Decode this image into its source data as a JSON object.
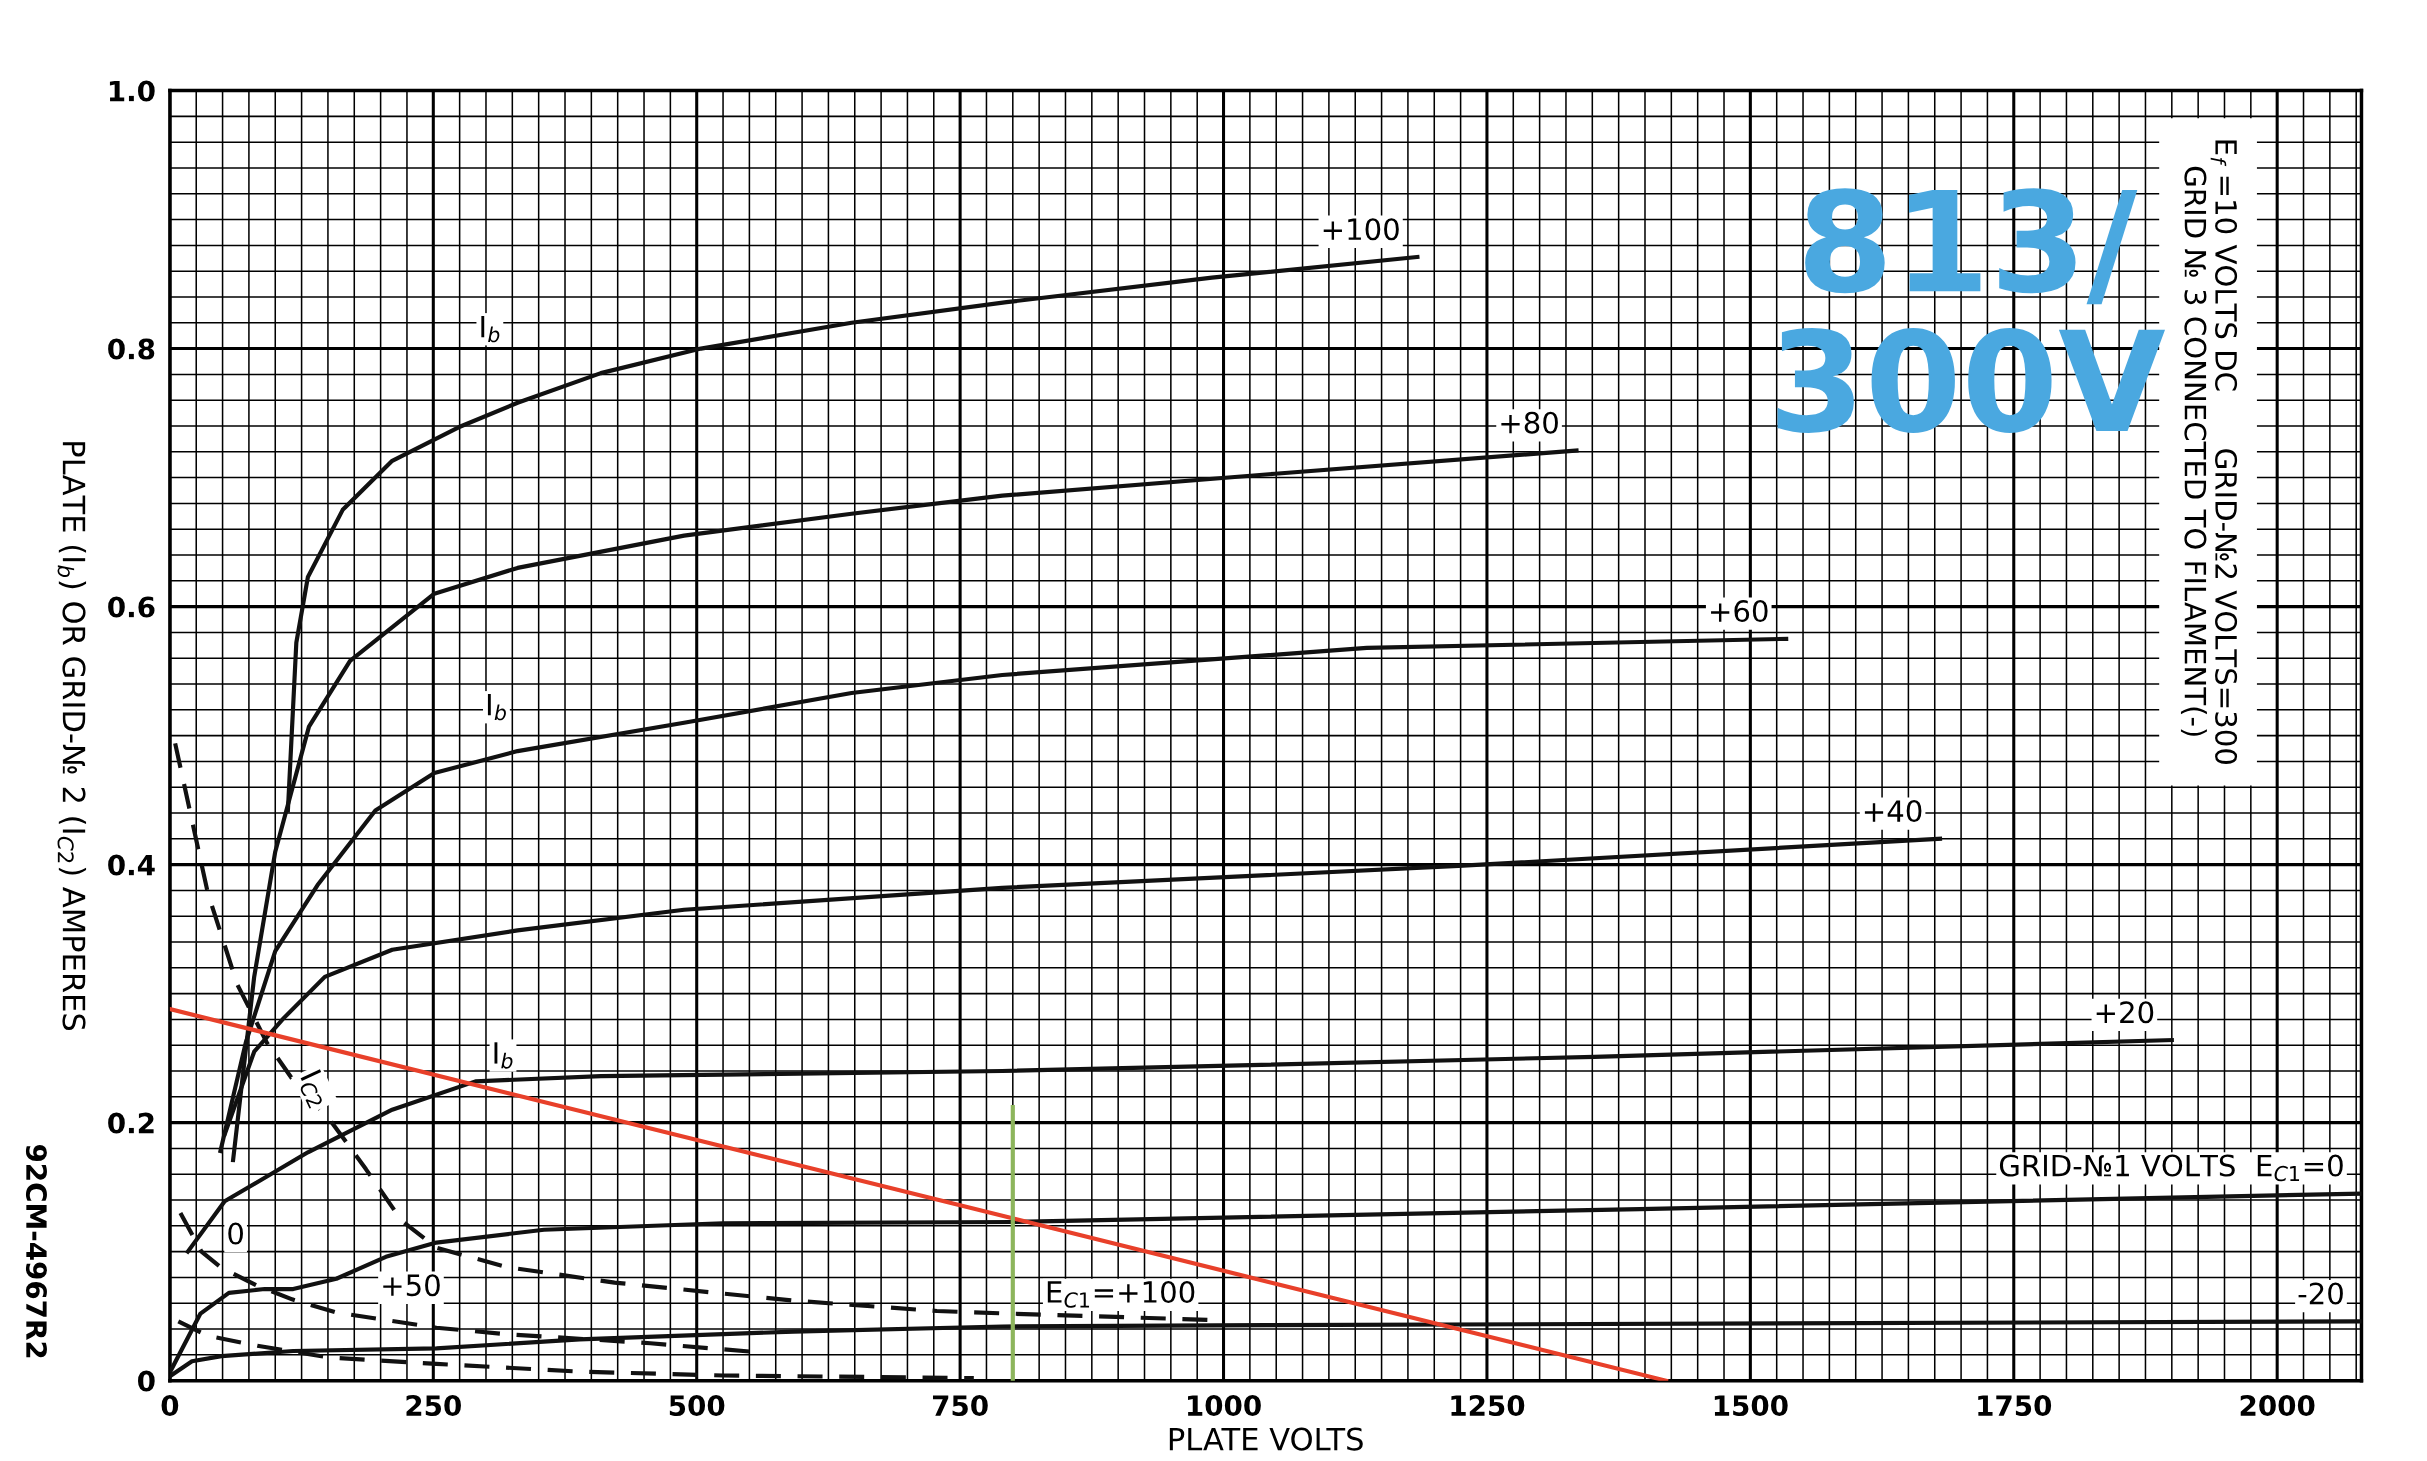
{
  "chart_data": {
    "type": "line",
    "xlabel": "PLATE VOLTS",
    "ylabel": "PLATE (I$_{b}$) OR GRID-№ 2 (I$_{C2}$) AMPERES",
    "xlim": [
      0,
      2080
    ],
    "ylim": [
      0,
      1.0
    ],
    "xticks": [
      0,
      250,
      500,
      750,
      1000,
      1250,
      1500,
      1750,
      2000
    ],
    "yticks": [
      0,
      0.2,
      0.4,
      0.6,
      0.8,
      {
        "value": 1,
        "label": "1.0"
      }
    ],
    "grid": true,
    "marker": "none",
    "series": [
      {
        "name": "+100",
        "color": "#111111",
        "line_style": "solid",
        "x": [
          112,
          120,
          131,
          164,
          211,
          274,
          330,
          409,
          504,
          647,
          794,
          989,
          1184
        ],
        "values": [
          0.442,
          0.572,
          0.623,
          0.675,
          0.713,
          0.739,
          0.758,
          0.781,
          0.8,
          0.82,
          0.836,
          0.855,
          0.871
        ]
      },
      {
        "name": "+80",
        "color": "#111111",
        "line_style": "solid",
        "x": [
          60,
          80,
          100,
          132,
          171,
          251,
          330,
          488,
          647,
          790,
          1049,
          1335
        ],
        "values": [
          0.171,
          0.313,
          0.41,
          0.507,
          0.558,
          0.61,
          0.63,
          0.655,
          0.672,
          0.686,
          0.703,
          0.721
        ]
      },
      {
        "name": "+60",
        "color": "#111111",
        "line_style": "solid",
        "x": [
          48,
          72,
          100,
          140,
          195,
          251,
          330,
          488,
          647,
          790,
          1136,
          1534
        ],
        "values": [
          0.178,
          0.262,
          0.333,
          0.384,
          0.442,
          0.471,
          0.488,
          0.51,
          0.533,
          0.547,
          0.568,
          0.575
        ]
      },
      {
        "name": "+40",
        "color": "#111111",
        "line_style": "solid",
        "x": [
          52,
          80,
          108,
          147,
          211,
          330,
          488,
          790,
          1223,
          1680
        ],
        "values": [
          0.191,
          0.255,
          0.281,
          0.313,
          0.334,
          0.349,
          0.365,
          0.382,
          0.399,
          0.42
        ]
      },
      {
        "name": "+20",
        "color": "#111111",
        "line_style": "solid",
        "x": [
          17,
          52,
          131,
          211,
          290,
          409,
          790,
          1352,
          1900
        ],
        "values": [
          0.1,
          0.139,
          0.177,
          0.21,
          0.232,
          0.236,
          0.24,
          0.251,
          0.264
        ]
      },
      {
        "name": "GRID-№1 VOLTS  E$_{C1}$=0",
        "color": "#111111",
        "line_style": "solid",
        "x": [
          1,
          29,
          56,
          90,
          117,
          158,
          205,
          253,
          355,
          525,
          800,
          1395,
          2080
        ],
        "values": [
          0.008,
          0.052,
          0.068,
          0.071,
          0.071,
          0.079,
          0.096,
          0.107,
          0.117,
          0.122,
          0.123,
          0.133,
          0.145
        ]
      },
      {
        "name": "-20",
        "color": "#111111",
        "line_style": "solid",
        "x": [
          1,
          21,
          49,
          117,
          253,
          389,
          592,
          790,
          1041,
          2080
        ],
        "values": [
          0.004,
          0.015,
          0.019,
          0.023,
          0.025,
          0.032,
          0.038,
          0.042,
          0.043,
          0.046
        ]
      },
      {
        "name": "E$_{C1}$=+100",
        "color": "#111111",
        "line_style": "dashed",
        "x": [
          5,
          36,
          64,
          92,
          116,
          152,
          186,
          220,
          253,
          320,
          422,
          592,
          728,
          796,
          990
        ],
        "values": [
          0.494,
          0.378,
          0.307,
          0.262,
          0.234,
          0.202,
          0.164,
          0.124,
          0.103,
          0.088,
          0.076,
          0.062,
          0.054,
          0.052,
          0.047
        ]
      },
      {
        "color": "#111111",
        "line_style": "dashed",
        "x": [
          10,
          30,
          48,
          82,
          116,
          157,
          253,
          320,
          456,
          558
        ],
        "values": [
          0.13,
          0.1,
          0.088,
          0.074,
          0.063,
          0.053,
          0.041,
          0.036,
          0.029,
          0.022
        ]
      },
      {
        "color": "#111111",
        "line_style": "dashed",
        "x": [
          8,
          35,
          83,
          151,
          253,
          389,
          525,
          763
        ],
        "values": [
          0.046,
          0.035,
          0.027,
          0.018,
          0.013,
          0.007,
          0.004,
          0.002
        ]
      },
      {
        "color": "#e8402a",
        "line_style": "solid",
        "x": [
          0,
          1420
        ],
        "values": [
          0.288,
          0
        ]
      },
      {
        "color": "#8db55c",
        "line_style": "solid",
        "x": [
          800,
          800
        ],
        "values": [
          0,
          0.212
        ]
      }
    ],
    "annotations": [
      "E$_{f}$ =10 VOLTS DC      GRID-№2 VOLTS=300\nGRID № 3 CONNECTED TO FILAMENT(-)",
      "813/\n300V",
      "92CM-4967R2",
      "I$_{b}$",
      "I$_{b}$",
      "I$_{b}$",
      "I$_{C2}$",
      "+50",
      "0"
    ]
  }
}
